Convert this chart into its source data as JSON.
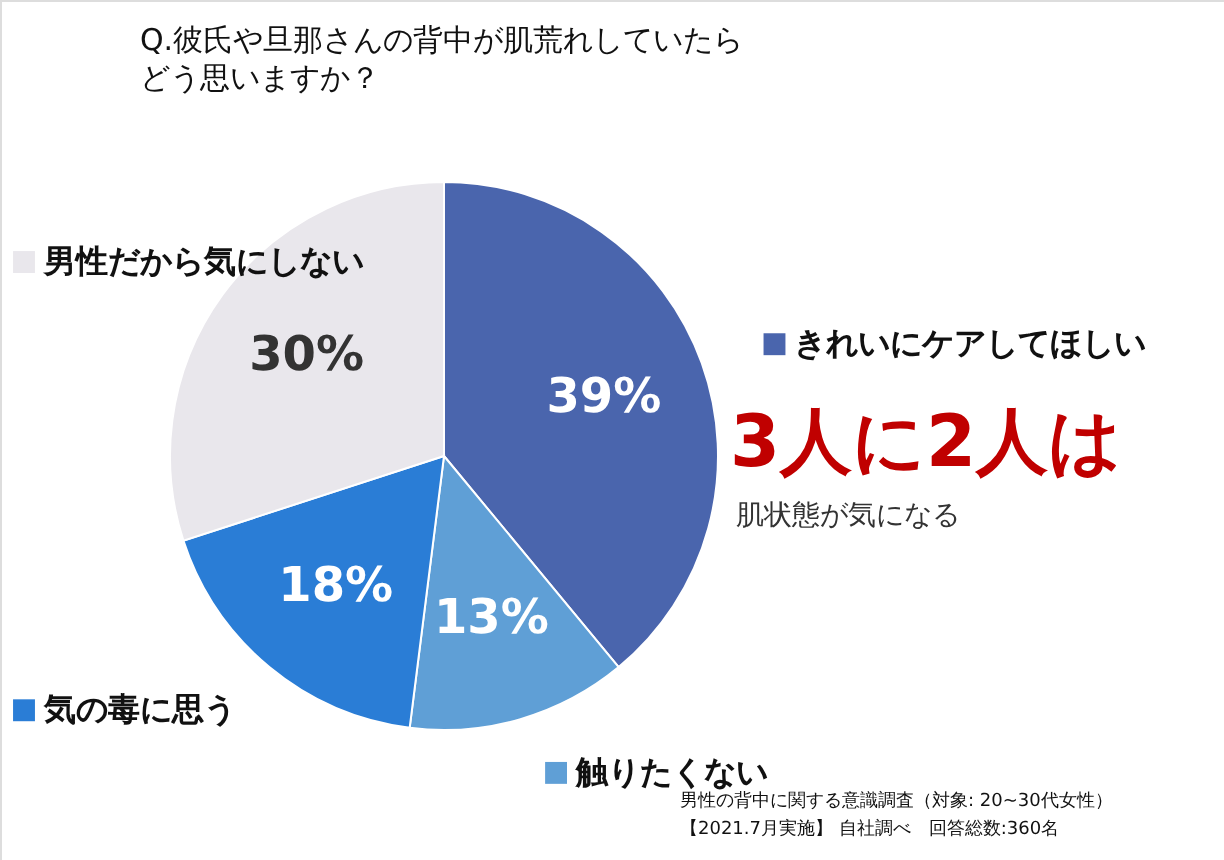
{
  "chart_data": {
    "type": "pie",
    "title": [
      "Q.彼氏や旦那さんの背中が肌荒れしていたら",
      "どう思いますか？"
    ],
    "categories": [
      "きれいにケアしてほしい",
      "触りたくない",
      "気の毒に思う",
      "男性だから気にしない"
    ],
    "values": [
      39,
      13,
      18,
      30
    ],
    "colors": [
      "#4a65ad",
      "#5f9fd6",
      "#2a7dd6",
      "#e9e7ec"
    ],
    "value_labels": [
      "39%",
      "13%",
      "18%",
      "30%"
    ],
    "legend": "right",
    "annotations": [
      "3人に2人は",
      "肌状態が気になる",
      "男性の背中に関する意識調査（対象: 20~30代女性）",
      "【2021.7月実施】 自社調べ　回答総数:360名"
    ]
  }
}
